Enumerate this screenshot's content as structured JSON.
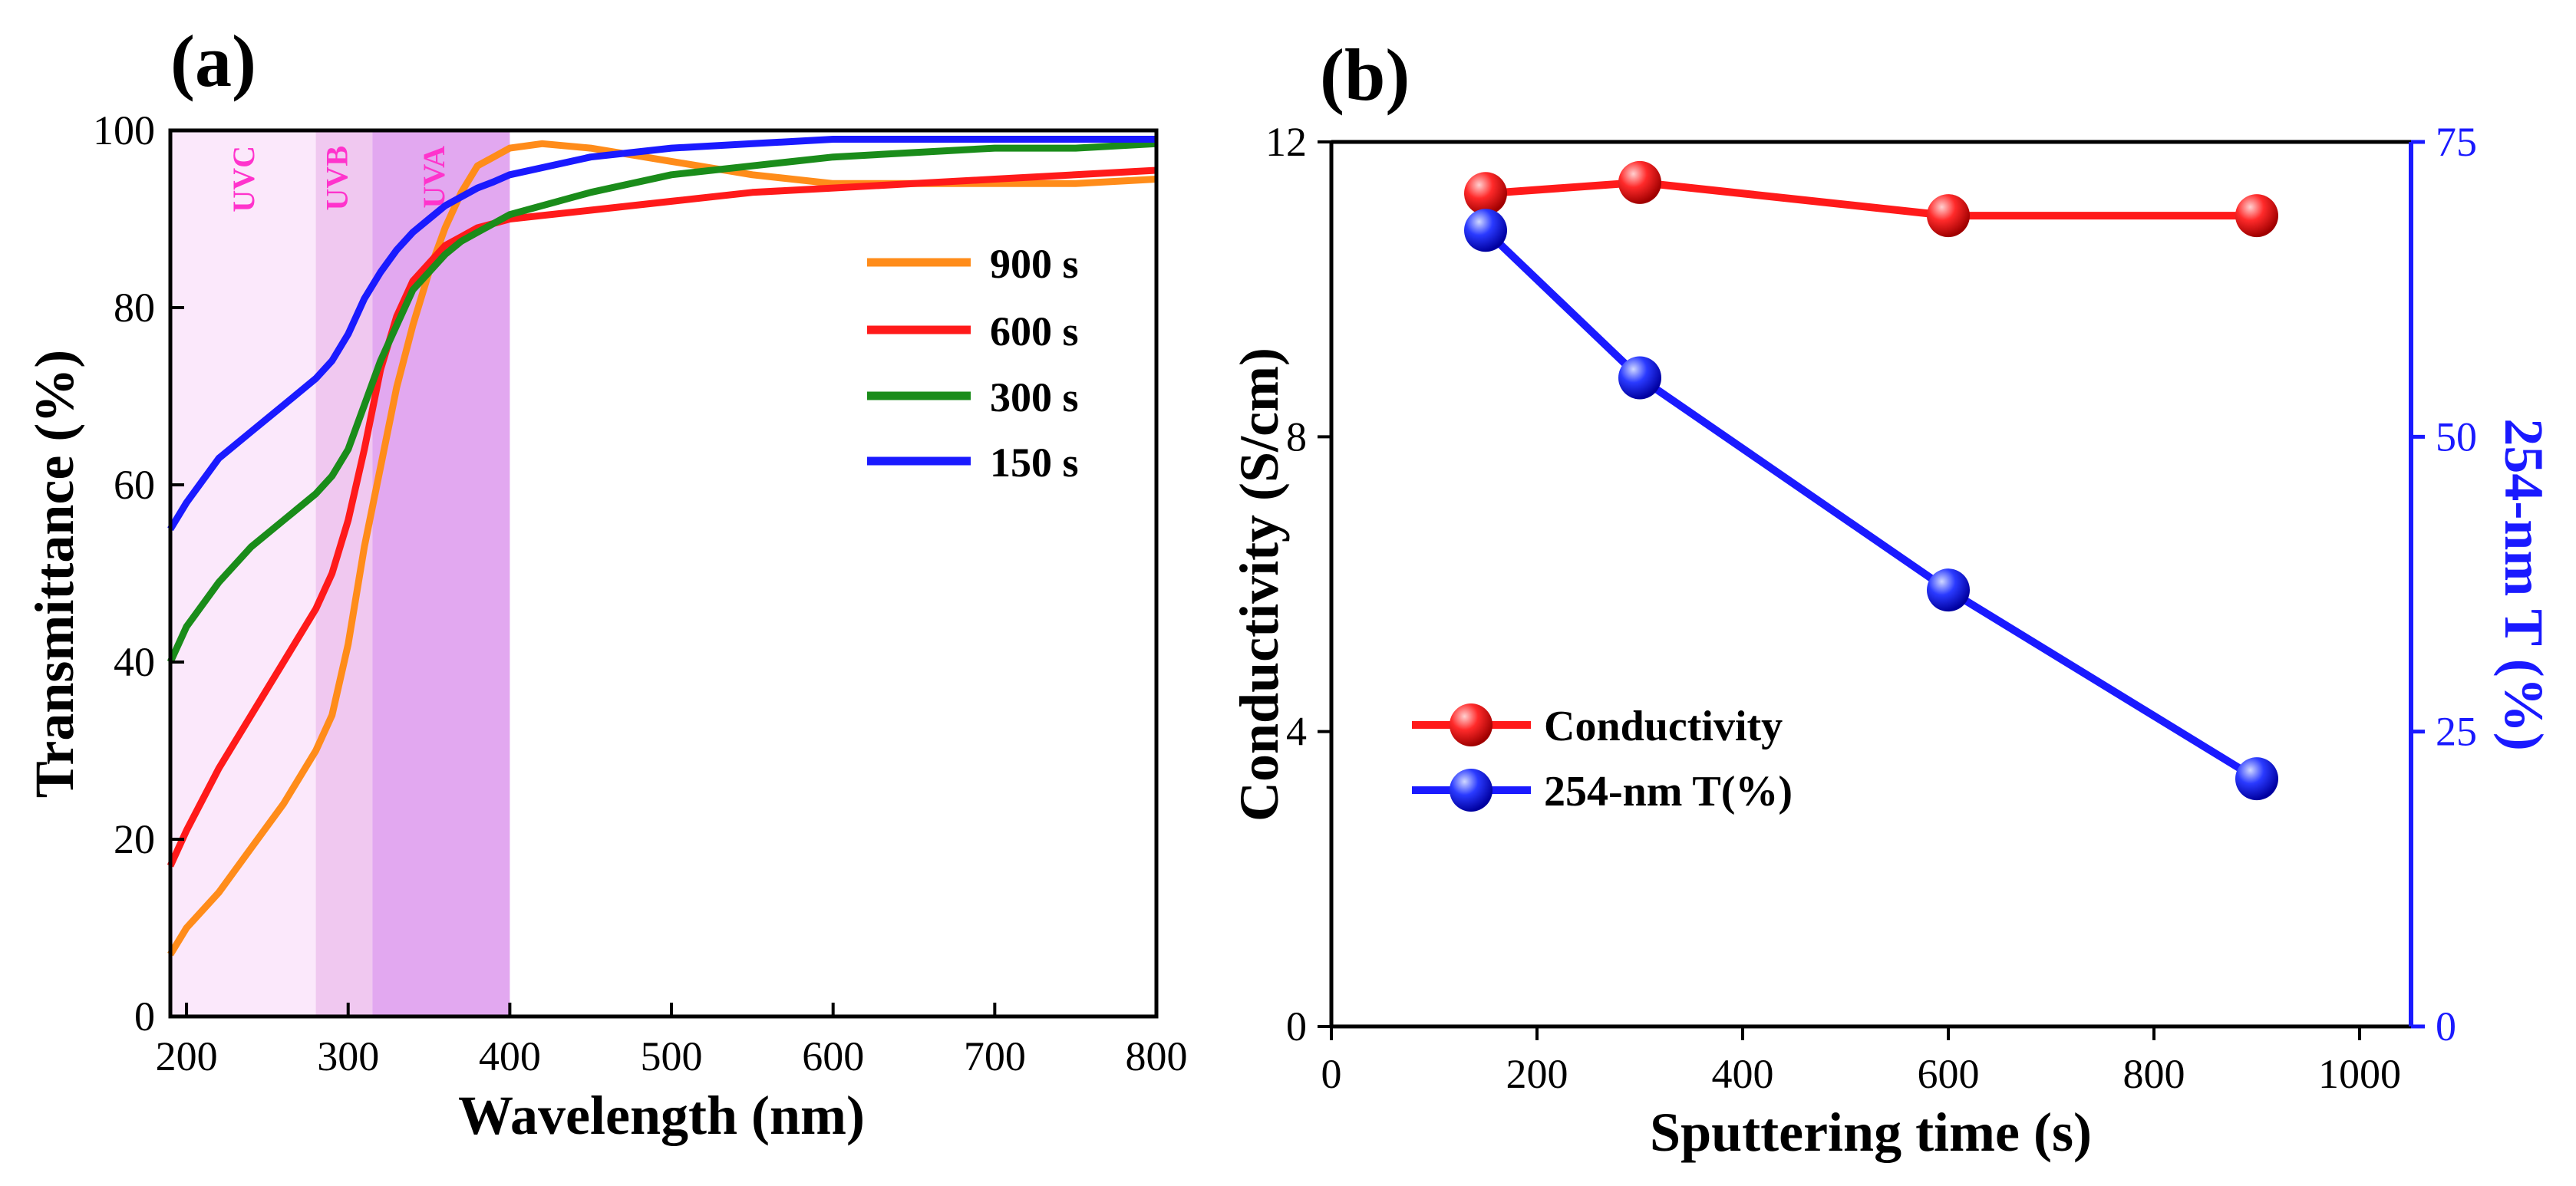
{
  "colors": {
    "orange": "#ff8c1a",
    "red": "#ff1a1a",
    "green": "#1a8c1a",
    "blue": "#1a1aff",
    "uvc": "#fbe8fb",
    "uvb": "#f0c8f0",
    "uva": "#e2a8f0",
    "uv_label": "#ff33cc",
    "axis": "#000000",
    "right_axis": "#1a1aff"
  },
  "chart_data": [
    {
      "panel_label": "(a)",
      "type": "line",
      "title": "",
      "xlabel": "Wavelength (nm)",
      "ylabel": "Transmittance (%)",
      "xlim": [
        190,
        800
      ],
      "ylim": [
        0,
        100
      ],
      "xticks": [
        200,
        300,
        400,
        500,
        600,
        700,
        800
      ],
      "yticks": [
        0,
        20,
        40,
        60,
        80,
        100
      ],
      "regions": [
        {
          "label": "UVC",
          "from": 190,
          "to": 280,
          "color_key": "uvc"
        },
        {
          "label": "UVB",
          "from": 280,
          "to": 315,
          "color_key": "uvb"
        },
        {
          "label": "UVA",
          "from": 315,
          "to": 400,
          "color_key": "uva"
        }
      ],
      "legend_position": "center-right",
      "series": [
        {
          "name": "900 s",
          "color_key": "orange",
          "x": [
            190,
            200,
            220,
            240,
            260,
            280,
            290,
            300,
            310,
            320,
            330,
            340,
            350,
            360,
            370,
            380,
            390,
            400,
            420,
            450,
            500,
            550,
            600,
            650,
            700,
            750,
            800
          ],
          "y": [
            7,
            10,
            14,
            19,
            24,
            30,
            34,
            42,
            53,
            62,
            71,
            78,
            84,
            89,
            93,
            96,
            97,
            98,
            98.5,
            98,
            96.5,
            95,
            94,
            94,
            94,
            94,
            94.5
          ]
        },
        {
          "name": "600 s",
          "color_key": "red",
          "x": [
            190,
            200,
            220,
            240,
            260,
            280,
            290,
            300,
            310,
            320,
            330,
            340,
            350,
            360,
            370,
            380,
            390,
            400,
            450,
            500,
            550,
            600,
            650,
            700,
            750,
            800
          ],
          "y": [
            17,
            21,
            28,
            34,
            40,
            46,
            50,
            56,
            64,
            73,
            79,
            83,
            85,
            87,
            88,
            89,
            89.5,
            90,
            91,
            92,
            93,
            93.5,
            94,
            94.5,
            95,
            95.5
          ]
        },
        {
          "name": "300 s",
          "color_key": "green",
          "x": [
            190,
            200,
            220,
            240,
            260,
            280,
            290,
            300,
            310,
            320,
            330,
            340,
            350,
            360,
            370,
            380,
            390,
            400,
            450,
            500,
            550,
            600,
            650,
            700,
            750,
            800
          ],
          "y": [
            40,
            44,
            49,
            53,
            56,
            59,
            61,
            64,
            69,
            74,
            78,
            82,
            84,
            86,
            87.5,
            88.5,
            89.5,
            90.5,
            93,
            95,
            96,
            97,
            97.5,
            98,
            98,
            98.5
          ]
        },
        {
          "name": "150 s",
          "color_key": "blue",
          "x": [
            190,
            200,
            220,
            240,
            260,
            280,
            290,
            300,
            310,
            320,
            330,
            340,
            350,
            360,
            370,
            380,
            390,
            400,
            450,
            500,
            550,
            600,
            650,
            700,
            750,
            800
          ],
          "y": [
            55,
            58,
            63,
            66,
            69,
            72,
            74,
            77,
            81,
            84,
            86.5,
            88.5,
            90,
            91.5,
            92.5,
            93.5,
            94.2,
            95,
            97,
            98,
            98.5,
            99,
            99,
            99,
            99,
            99
          ]
        }
      ]
    },
    {
      "panel_label": "(b)",
      "type": "line",
      "title": "",
      "xlabel": "Sputtering time (s)",
      "ylabel": "Conductivity (S/cm)",
      "y2label": "254-nm T (%)",
      "xlim": [
        0,
        1050
      ],
      "ylim": [
        0,
        12
      ],
      "y2lim": [
        0,
        75
      ],
      "xticks": [
        0,
        200,
        400,
        600,
        800,
        1000
      ],
      "yticks": [
        0,
        4,
        8,
        12
      ],
      "y2ticks": [
        0,
        25,
        50,
        75
      ],
      "legend_position": "bottom-left",
      "series": [
        {
          "name": "Conductivity",
          "axis": "left",
          "color_key": "red",
          "x": [
            150,
            300,
            600,
            900
          ],
          "y": [
            11.3,
            11.45,
            11.0,
            11.0
          ]
        },
        {
          "name": "254-nm T(%)",
          "axis": "right",
          "color_key": "blue",
          "x": [
            150,
            300,
            600,
            900
          ],
          "y": [
            67.5,
            55.0,
            37.0,
            21.0
          ]
        }
      ]
    }
  ]
}
